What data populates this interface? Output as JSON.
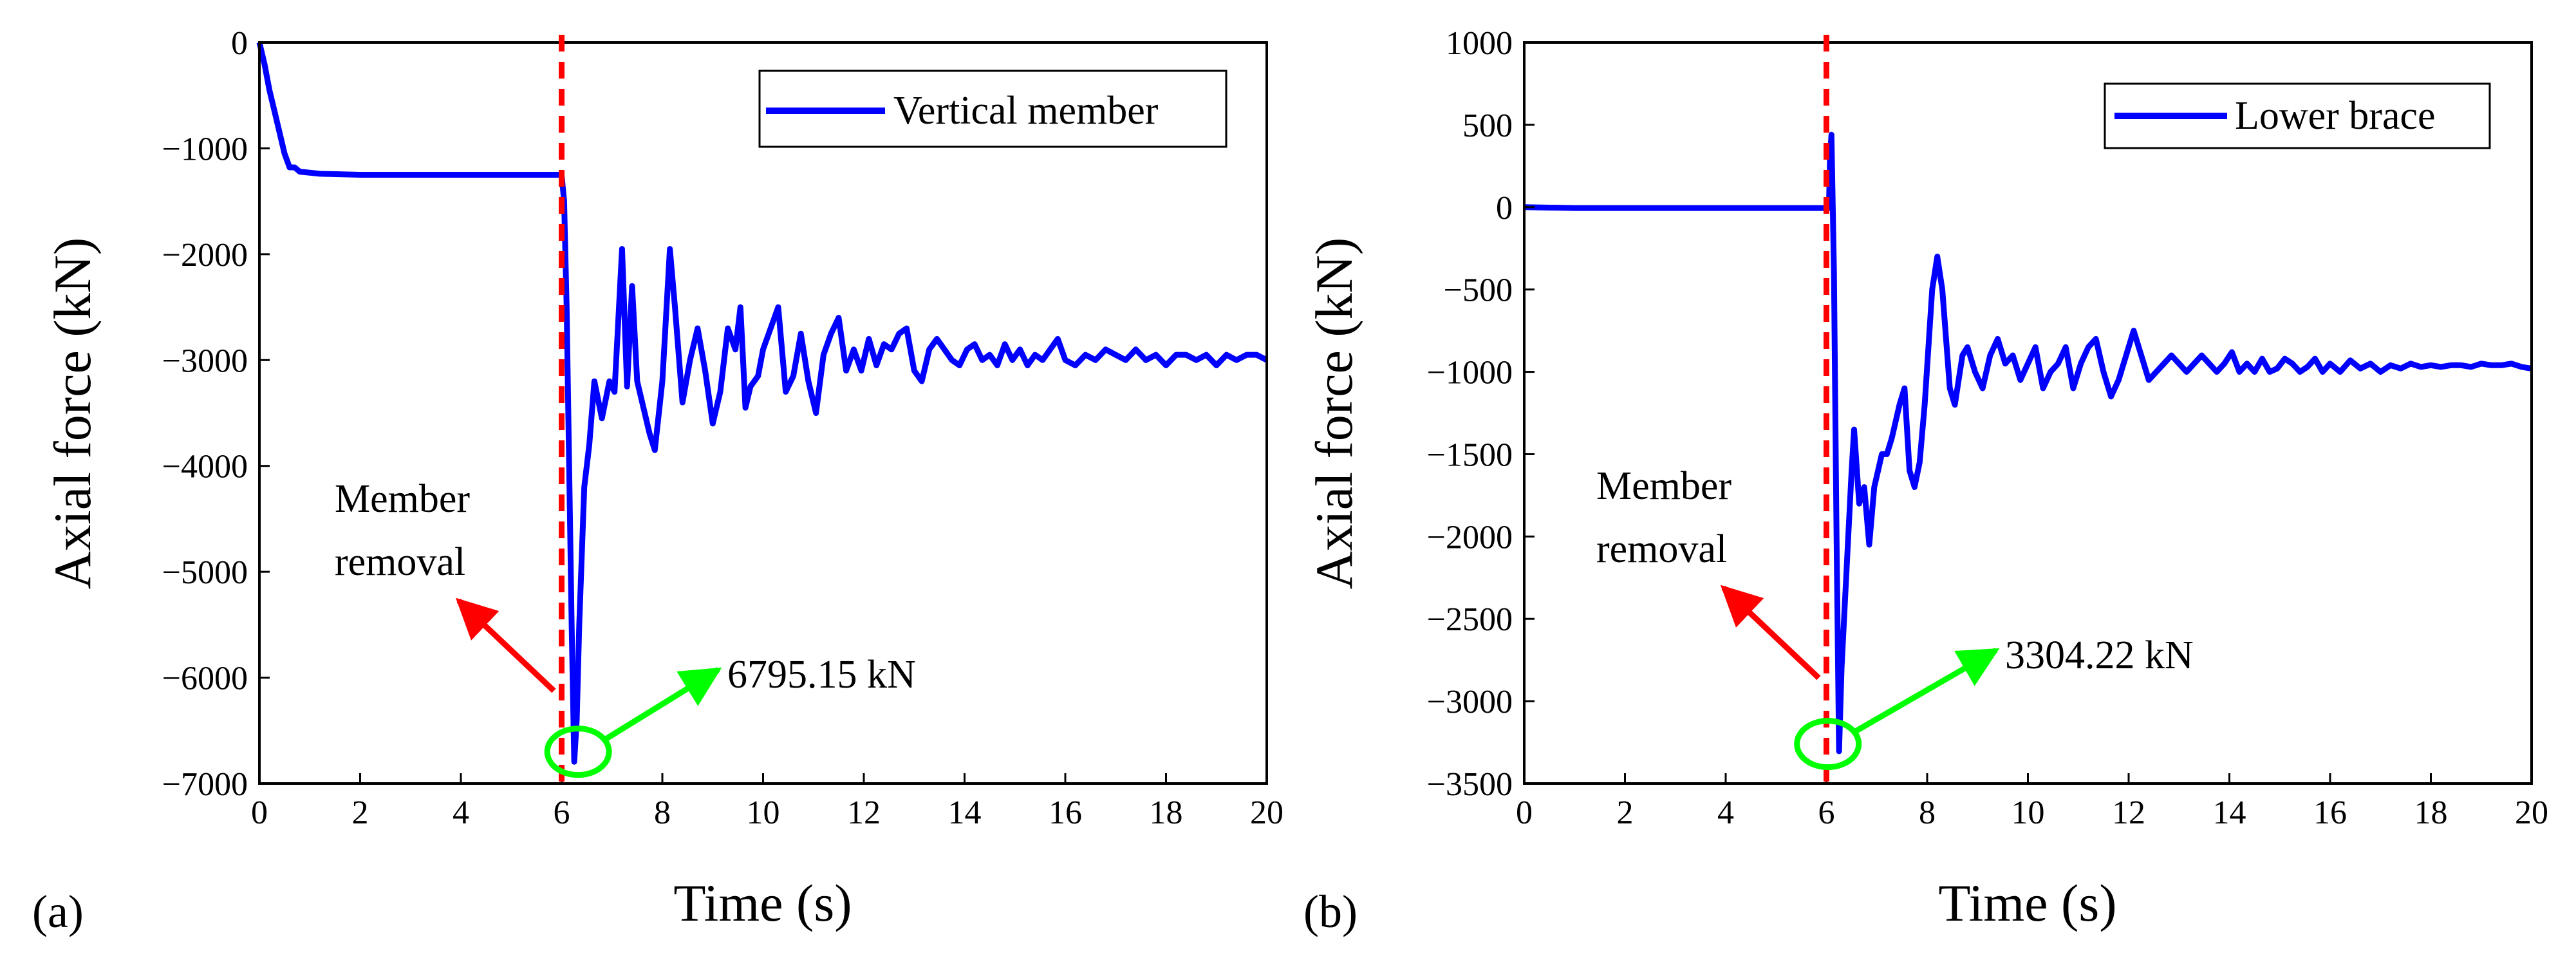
{
  "chart_data": [
    {
      "type": "line",
      "panel_label": "(a)",
      "xlabel": "Time (s)",
      "ylabel": "Axial force (kN)",
      "xlim": [
        0,
        20
      ],
      "ylim": [
        -7000,
        0
      ],
      "xticks": [
        0,
        2,
        4,
        6,
        8,
        10,
        12,
        14,
        16,
        18,
        20
      ],
      "yticks": [
        0,
        -1000,
        -2000,
        -3000,
        -4000,
        -5000,
        -6000,
        -7000
      ],
      "grid": false,
      "legend_position": "top-right",
      "series": [
        {
          "name": "Vertical member",
          "color": "#0000ff",
          "points": [
            [
              0,
              0
            ],
            [
              0.1,
              -200
            ],
            [
              0.2,
              -450
            ],
            [
              0.3,
              -650
            ],
            [
              0.4,
              -850
            ],
            [
              0.5,
              -1050
            ],
            [
              0.6,
              -1180
            ],
            [
              0.7,
              -1180
            ],
            [
              0.8,
              -1220
            ],
            [
              1.2,
              -1240
            ],
            [
              2,
              -1250
            ],
            [
              3,
              -1250
            ],
            [
              4,
              -1250
            ],
            [
              5,
              -1250
            ],
            [
              6.0,
              -1250
            ],
            [
              6.05,
              -1500
            ],
            [
              6.1,
              -2500
            ],
            [
              6.15,
              -4000
            ],
            [
              6.2,
              -5500
            ],
            [
              6.25,
              -6795.15
            ],
            [
              6.3,
              -6400
            ],
            [
              6.35,
              -5500
            ],
            [
              6.45,
              -4200
            ],
            [
              6.55,
              -3800
            ],
            [
              6.65,
              -3200
            ],
            [
              6.8,
              -3550
            ],
            [
              6.95,
              -3200
            ],
            [
              7.05,
              -3300
            ],
            [
              7.2,
              -1950
            ],
            [
              7.3,
              -3250
            ],
            [
              7.4,
              -2300
            ],
            [
              7.5,
              -3200
            ],
            [
              7.6,
              -3400
            ],
            [
              7.75,
              -3700
            ],
            [
              7.85,
              -3850
            ],
            [
              8.0,
              -3200
            ],
            [
              8.15,
              -1950
            ],
            [
              8.25,
              -2500
            ],
            [
              8.4,
              -3400
            ],
            [
              8.55,
              -3000
            ],
            [
              8.7,
              -2700
            ],
            [
              8.85,
              -3100
            ],
            [
              9.0,
              -3600
            ],
            [
              9.15,
              -3300
            ],
            [
              9.3,
              -2700
            ],
            [
              9.45,
              -2900
            ],
            [
              9.55,
              -2500
            ],
            [
              9.65,
              -3450
            ],
            [
              9.75,
              -3250
            ],
            [
              9.9,
              -3150
            ],
            [
              10.0,
              -2900
            ],
            [
              10.15,
              -2700
            ],
            [
              10.3,
              -2500
            ],
            [
              10.45,
              -3300
            ],
            [
              10.6,
              -3150
            ],
            [
              10.75,
              -2750
            ],
            [
              10.9,
              -3200
            ],
            [
              11.05,
              -3500
            ],
            [
              11.2,
              -2950
            ],
            [
              11.35,
              -2750
            ],
            [
              11.5,
              -2600
            ],
            [
              11.65,
              -3100
            ],
            [
              11.8,
              -2900
            ],
            [
              11.95,
              -3100
            ],
            [
              12.1,
              -2800
            ],
            [
              12.25,
              -3050
            ],
            [
              12.4,
              -2850
            ],
            [
              12.55,
              -2900
            ],
            [
              12.7,
              -2750
            ],
            [
              12.85,
              -2700
            ],
            [
              13.0,
              -3100
            ],
            [
              13.15,
              -3200
            ],
            [
              13.3,
              -2900
            ],
            [
              13.45,
              -2800
            ],
            [
              13.6,
              -2900
            ],
            [
              13.75,
              -3000
            ],
            [
              13.9,
              -3050
            ],
            [
              14.05,
              -2900
            ],
            [
              14.2,
              -2850
            ],
            [
              14.35,
              -3000
            ],
            [
              14.5,
              -2950
            ],
            [
              14.65,
              -3050
            ],
            [
              14.8,
              -2850
            ],
            [
              14.95,
              -3000
            ],
            [
              15.1,
              -2900
            ],
            [
              15.25,
              -3050
            ],
            [
              15.4,
              -2950
            ],
            [
              15.55,
              -3000
            ],
            [
              15.7,
              -2900
            ],
            [
              15.85,
              -2800
            ],
            [
              16.0,
              -3000
            ],
            [
              16.2,
              -3050
            ],
            [
              16.4,
              -2950
            ],
            [
              16.6,
              -3000
            ],
            [
              16.8,
              -2900
            ],
            [
              17.0,
              -2950
            ],
            [
              17.2,
              -3000
            ],
            [
              17.4,
              -2900
            ],
            [
              17.6,
              -3000
            ],
            [
              17.8,
              -2950
            ],
            [
              18.0,
              -3050
            ],
            [
              18.2,
              -2950
            ],
            [
              18.4,
              -2950
            ],
            [
              18.6,
              -3000
            ],
            [
              18.8,
              -2950
            ],
            [
              19.0,
              -3050
            ],
            [
              19.2,
              -2950
            ],
            [
              19.4,
              -3000
            ],
            [
              19.6,
              -2950
            ],
            [
              19.8,
              -2950
            ],
            [
              20.0,
              -3000
            ]
          ]
        }
      ],
      "annotations": {
        "removal_time": 6,
        "removal_line_color": "#ff0000",
        "removal_text": [
          "Member",
          "removal"
        ],
        "removal_arrow_color": "#ff0000",
        "peak_x": 6.2,
        "peak_y": -6700,
        "peak_text": "6795.15 kN",
        "peak_text_x": 9.6,
        "peak_text_y": -6000,
        "peak_circle_color": "#00ff00",
        "peak_arrow_color": "#00ff00"
      }
    },
    {
      "type": "line",
      "panel_label": "(b)",
      "xlabel": "Time (s)",
      "ylabel": "Axial force (kN)",
      "xlim": [
        0,
        20
      ],
      "ylim": [
        -3500,
        1000
      ],
      "xticks": [
        0,
        2,
        4,
        6,
        8,
        10,
        12,
        14,
        16,
        18,
        20
      ],
      "yticks": [
        1000,
        500,
        0,
        -500,
        -1000,
        -1500,
        -2000,
        -2500,
        -3000,
        -3500
      ],
      "grid": false,
      "legend_position": "top-right",
      "series": [
        {
          "name": "Lower brace",
          "color": "#0000ff",
          "points": [
            [
              0,
              0
            ],
            [
              1,
              -5
            ],
            [
              2,
              -5
            ],
            [
              3,
              -5
            ],
            [
              4,
              -5
            ],
            [
              5,
              -5
            ],
            [
              6.0,
              -5
            ],
            [
              6.05,
              -5
            ],
            [
              6.07,
              300
            ],
            [
              6.1,
              440
            ],
            [
              6.15,
              -400
            ],
            [
              6.2,
              -2000
            ],
            [
              6.25,
              -3304.22
            ],
            [
              6.3,
              -2800
            ],
            [
              6.4,
              -2200
            ],
            [
              6.5,
              -1600
            ],
            [
              6.55,
              -1350
            ],
            [
              6.65,
              -1800
            ],
            [
              6.75,
              -1700
            ],
            [
              6.85,
              -2050
            ],
            [
              6.95,
              -1700
            ],
            [
              7.1,
              -1500
            ],
            [
              7.2,
              -1500
            ],
            [
              7.3,
              -1400
            ],
            [
              7.45,
              -1200
            ],
            [
              7.55,
              -1100
            ],
            [
              7.65,
              -1600
            ],
            [
              7.75,
              -1700
            ],
            [
              7.85,
              -1550
            ],
            [
              7.95,
              -1200
            ],
            [
              8.1,
              -500
            ],
            [
              8.2,
              -300
            ],
            [
              8.3,
              -500
            ],
            [
              8.45,
              -1100
            ],
            [
              8.55,
              -1200
            ],
            [
              8.7,
              -900
            ],
            [
              8.8,
              -850
            ],
            [
              8.95,
              -1000
            ],
            [
              9.1,
              -1100
            ],
            [
              9.25,
              -900
            ],
            [
              9.4,
              -800
            ],
            [
              9.55,
              -950
            ],
            [
              9.7,
              -900
            ],
            [
              9.85,
              -1050
            ],
            [
              10.0,
              -950
            ],
            [
              10.15,
              -850
            ],
            [
              10.3,
              -1100
            ],
            [
              10.45,
              -1000
            ],
            [
              10.6,
              -950
            ],
            [
              10.75,
              -850
            ],
            [
              10.9,
              -1100
            ],
            [
              11.05,
              -950
            ],
            [
              11.2,
              -850
            ],
            [
              11.35,
              -800
            ],
            [
              11.5,
              -1000
            ],
            [
              11.65,
              -1150
            ],
            [
              11.8,
              -1050
            ],
            [
              11.95,
              -900
            ],
            [
              12.1,
              -750
            ],
            [
              12.25,
              -900
            ],
            [
              12.4,
              -1050
            ],
            [
              12.55,
              -1000
            ],
            [
              12.7,
              -950
            ],
            [
              12.85,
              -900
            ],
            [
              13.0,
              -950
            ],
            [
              13.15,
              -1000
            ],
            [
              13.3,
              -950
            ],
            [
              13.45,
              -900
            ],
            [
              13.6,
              -950
            ],
            [
              13.75,
              -1000
            ],
            [
              13.9,
              -950
            ],
            [
              14.05,
              -880
            ],
            [
              14.2,
              -1000
            ],
            [
              14.35,
              -950
            ],
            [
              14.5,
              -1000
            ],
            [
              14.65,
              -920
            ],
            [
              14.8,
              -1000
            ],
            [
              14.95,
              -980
            ],
            [
              15.1,
              -920
            ],
            [
              15.25,
              -950
            ],
            [
              15.4,
              -1000
            ],
            [
              15.55,
              -970
            ],
            [
              15.7,
              -920
            ],
            [
              15.85,
              -1000
            ],
            [
              16.0,
              -950
            ],
            [
              16.2,
              -1000
            ],
            [
              16.4,
              -930
            ],
            [
              16.6,
              -980
            ],
            [
              16.8,
              -950
            ],
            [
              17.0,
              -1000
            ],
            [
              17.2,
              -960
            ],
            [
              17.4,
              -980
            ],
            [
              17.6,
              -950
            ],
            [
              17.8,
              -970
            ],
            [
              18.0,
              -960
            ],
            [
              18.2,
              -970
            ],
            [
              18.4,
              -960
            ],
            [
              18.6,
              -960
            ],
            [
              18.8,
              -970
            ],
            [
              19.0,
              -950
            ],
            [
              19.2,
              -960
            ],
            [
              19.4,
              -960
            ],
            [
              19.6,
              -950
            ],
            [
              19.8,
              -970
            ],
            [
              20.0,
              -980
            ]
          ]
        }
      ],
      "annotations": {
        "removal_time": 6,
        "removal_line_color": "#ff0000",
        "removal_text": [
          "Member",
          "removal"
        ],
        "removal_arrow_color": "#ff0000",
        "peak_x": 5.9,
        "peak_y": -3260,
        "peak_text": "3304.22 kN",
        "peak_text_x": 9.6,
        "peak_text_y": -2750,
        "peak_circle_color": "#00ff00",
        "peak_arrow_color": "#00ff00"
      }
    }
  ]
}
